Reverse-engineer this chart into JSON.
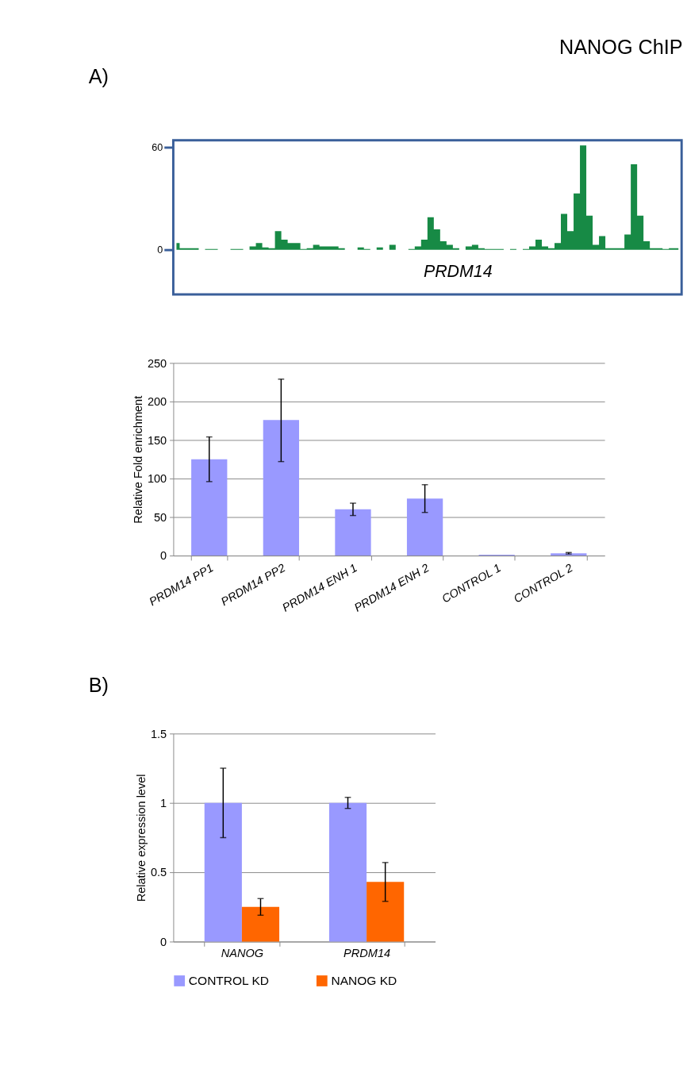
{
  "chart_data": [
    {
      "type": "area",
      "title": "NANOG ChIP",
      "annotations": [
        "A)",
        "PRDM14"
      ],
      "categories": [
        null,
        null,
        null,
        null,
        null,
        null,
        null,
        null,
        null,
        null,
        null,
        null,
        null,
        null,
        null,
        null,
        null,
        null,
        null,
        null,
        null,
        null,
        null,
        null,
        null,
        null,
        null,
        null,
        null,
        null,
        null,
        null,
        null,
        null,
        null,
        null,
        null,
        null,
        null,
        null,
        null,
        null,
        null,
        null,
        null,
        null,
        null,
        null,
        null,
        null,
        null,
        null,
        null,
        null,
        null,
        null,
        null,
        null,
        null,
        null,
        null,
        null,
        null,
        null,
        null,
        null,
        null,
        null,
        null,
        null,
        null,
        null,
        null,
        null,
        null,
        null,
        null,
        null,
        null,
        null
      ],
      "series": [
        {
          "color": "#178a45",
          "values": [
            4,
            1,
            1,
            1,
            0,
            0.5,
            0.5,
            0,
            0,
            0.5,
            0.5,
            0,
            2,
            4,
            1.5,
            1,
            11,
            6,
            4,
            4,
            0.5,
            1,
            3,
            2,
            2,
            2,
            1,
            0,
            0,
            1.5,
            0.5,
            0,
            1.5,
            0,
            3,
            0,
            0,
            0.5,
            2,
            6,
            19,
            12,
            5,
            3,
            1,
            0,
            2,
            3,
            1,
            0.5,
            0.5,
            0.5,
            0,
            0.5,
            0,
            0.5,
            2,
            6,
            2,
            1,
            4,
            21,
            11,
            33,
            61,
            20,
            3,
            8,
            1,
            1,
            1,
            9,
            50,
            20,
            5,
            1,
            1,
            0.5,
            1,
            1
          ]
        }
      ],
      "ylim": [
        -26,
        64
      ],
      "yticks": [
        0,
        60
      ],
      "tick_labels": "y",
      "grid": false
    },
    {
      "type": "bar",
      "ylabel": "Relative Fold enrichment",
      "categories": [
        "PRDM14 PP1",
        "PRDM14 PP2",
        "PRDM14 ENH 1",
        "PRDM14 ENH 2",
        "CONTROL 1",
        "CONTROL 2"
      ],
      "series": [
        {
          "color": "#9999ff",
          "values": [
            125,
            176,
            60,
            74,
            1,
            3
          ],
          "errors": [
            [
              96,
              154
            ],
            [
              122,
              229
            ],
            [
              52,
              68
            ],
            [
              56,
              92
            ],
            null,
            [
              2,
              4
            ]
          ]
        }
      ],
      "ylim": [
        0,
        250
      ],
      "yticks": [
        0,
        50,
        100,
        150,
        200,
        250
      ],
      "grid": "y",
      "legend": false
    },
    {
      "type": "bar",
      "ylabel": "Relative expression  level",
      "annotations": [
        "B)"
      ],
      "categories": [
        "NANOG",
        "PRDM14"
      ],
      "series": [
        {
          "name": "CONTROL KD",
          "color": "#9999ff",
          "values": [
            1,
            1
          ],
          "errors": [
            [
              0.75,
              1.25
            ],
            [
              0.96,
              1.04
            ]
          ]
        },
        {
          "name": "NANOG KD",
          "color": "#ff6600",
          "values": [
            0.25,
            0.43
          ],
          "errors": [
            [
              0.19,
              0.31
            ],
            [
              0.29,
              0.57
            ]
          ]
        }
      ],
      "ylim": [
        0,
        1.5
      ],
      "yticks": [
        0,
        0.5,
        1,
        1.5
      ],
      "grid": "y",
      "legend": "bottom"
    }
  ]
}
